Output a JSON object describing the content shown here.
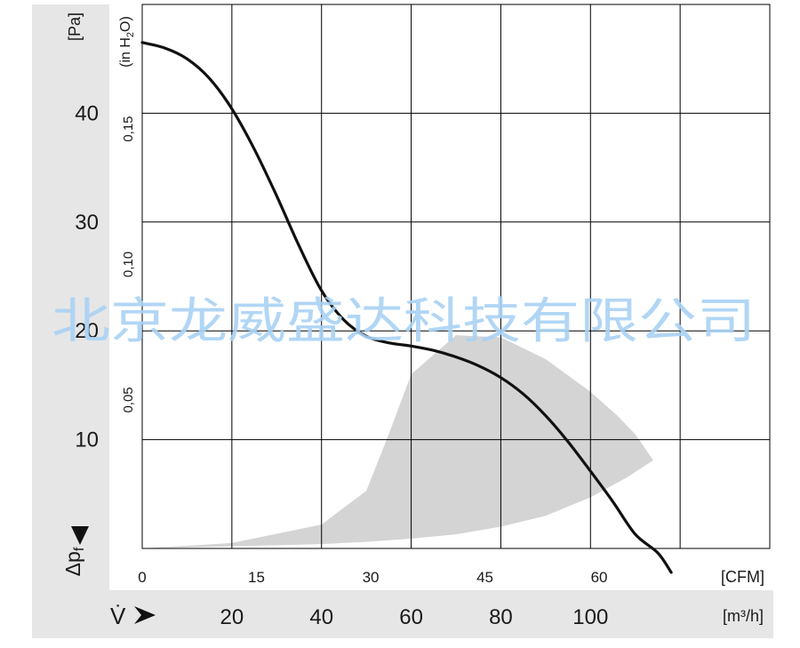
{
  "chart_data": {
    "type": "line",
    "y_unit_pa": "[Pa]",
    "y_unit_inh2o_pre": "(in H",
    "y_unit_inh2o_sub": "2",
    "y_unit_inh2o_post": "O)",
    "y_symbol": "Δp",
    "y_symbol_sub": "f",
    "x_symbol": "V̇",
    "pa_ticks": [
      "40",
      "30",
      "20",
      "10"
    ],
    "pa_tick_values": [
      40,
      30,
      20,
      10
    ],
    "inh2o_ticks": [
      "0,15",
      "0,10",
      "0,05"
    ],
    "inh2o_tick_values": [
      0.15,
      0.1,
      0.05
    ],
    "cfm_unit": "[CFM]",
    "cfm_ticks": [
      "0",
      "15",
      "30",
      "45",
      "60"
    ],
    "cfm_tick_values": [
      0,
      15,
      30,
      45,
      60
    ],
    "m3h_unit": "[m³/h]",
    "m3h_ticks": [
      "20",
      "40",
      "60",
      "80",
      "100"
    ],
    "m3h_tick_values": [
      20,
      40,
      60,
      80,
      100
    ],
    "xlim_m3h": [
      0,
      140
    ],
    "ylim_pa": [
      0,
      50
    ],
    "grid": true,
    "series": [
      {
        "color": "#111111",
        "x": [
          0,
          5,
          10,
          15,
          20,
          25,
          30,
          35,
          40,
          45,
          50,
          55,
          60,
          65,
          70,
          75,
          80,
          85,
          90,
          95,
          100,
          105,
          110,
          115,
          118
        ],
        "y": [
          46.5,
          46,
          45,
          43.2,
          40.4,
          36.7,
          32.4,
          27.8,
          23.7,
          21,
          19.5,
          18.9,
          18.6,
          18.2,
          17.6,
          16.8,
          15.7,
          14.2,
          12.2,
          9.8,
          7.1,
          4.3,
          1.3,
          -0.4,
          -2.2
        ]
      }
    ],
    "shaded_region": {
      "color": "#d4d4d4",
      "upper_x": [
        0,
        20,
        40,
        50,
        55,
        60,
        70,
        80,
        90,
        100,
        106,
        110,
        114
      ],
      "upper_y": [
        0,
        0.5,
        2.2,
        5.3,
        10.5,
        16.0,
        19.6,
        19.4,
        17.4,
        14.4,
        12.2,
        10.5,
        8.1
      ],
      "lower_x": [
        114,
        108,
        100,
        90,
        80,
        70,
        60,
        50,
        40,
        30,
        20,
        10,
        0
      ],
      "lower_y": [
        8.1,
        6.5,
        4.7,
        3.0,
        2.0,
        1.3,
        0.9,
        0.6,
        0.4,
        0.3,
        0.2,
        0.1,
        0
      ]
    },
    "colors": {
      "band": "#e6e6e6",
      "grid": "#000000",
      "line": "#111111",
      "watermark": "#a8d2f4"
    }
  },
  "watermark": "北京龙威盛达科技有限公司"
}
